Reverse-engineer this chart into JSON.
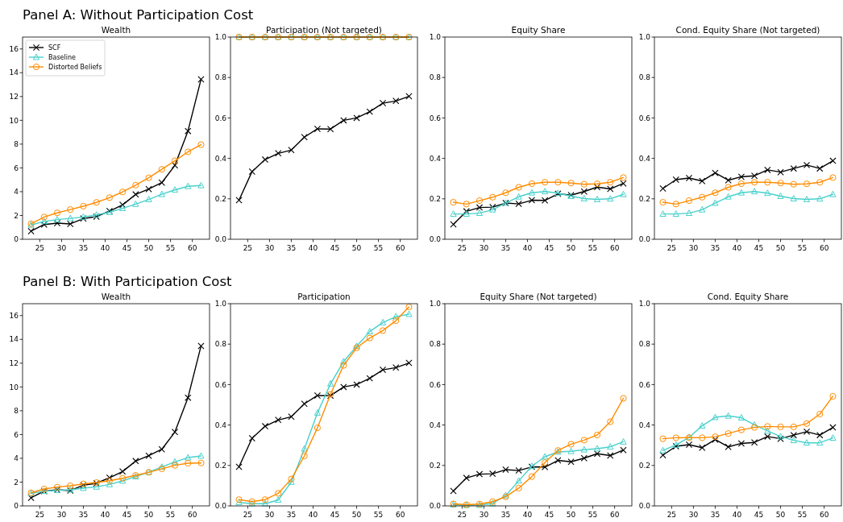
{
  "chart_data": [
    {
      "type": "line",
      "title": "Wealth",
      "annotations": [
        "Panel A: Without Participation Cost"
      ],
      "legend": "top left",
      "x": [
        23,
        26,
        29,
        32,
        35,
        38,
        41,
        44,
        47,
        50,
        53,
        56,
        59,
        62
      ],
      "xlim": [
        21.05,
        63.95
      ],
      "xticks": [
        25,
        30,
        35,
        40,
        45,
        50,
        55,
        60
      ],
      "ylim": [
        0,
        17
      ],
      "yticks": [
        0,
        2,
        4,
        6,
        8,
        10,
        12,
        14,
        16
      ],
      "series": [
        {
          "name": "SCF",
          "color": "#000000",
          "marker": "cross",
          "values": [
            0.68,
            1.24,
            1.35,
            1.29,
            1.74,
            1.9,
            2.37,
            2.89,
            3.77,
            4.22,
            4.76,
            6.21,
            9.1,
            13.45
          ]
        },
        {
          "name": "Baseline",
          "color": "#48d1cc",
          "marker": "triangle",
          "values": [
            1.2,
            1.5,
            1.65,
            1.75,
            1.87,
            2.05,
            2.27,
            2.6,
            2.95,
            3.35,
            3.78,
            4.15,
            4.45,
            4.52
          ]
        },
        {
          "name": "Distorted Beliefs",
          "color": "#ff8c00",
          "marker": "circle",
          "values": [
            1.3,
            1.87,
            2.22,
            2.5,
            2.78,
            3.1,
            3.5,
            3.98,
            4.55,
            5.17,
            5.88,
            6.6,
            7.35,
            7.95
          ]
        }
      ]
    },
    {
      "type": "line",
      "title": "Participation (Not targeted)",
      "x": [
        23,
        26,
        29,
        32,
        35,
        38,
        41,
        44,
        47,
        50,
        53,
        56,
        59,
        62
      ],
      "xlim": [
        21.05,
        63.95
      ],
      "xticks": [
        25,
        30,
        35,
        40,
        45,
        50,
        55,
        60
      ],
      "ylim": [
        0,
        1
      ],
      "yticks": [
        {
          "value": 0,
          "label": "0.0"
        },
        {
          "value": 0.2,
          "label": "0.2"
        },
        {
          "value": 0.4,
          "label": "0.4"
        },
        {
          "value": 0.6,
          "label": "0.6"
        },
        {
          "value": 0.8,
          "label": "0.8"
        },
        {
          "value": 1,
          "label": "1.0"
        }
      ],
      "series": [
        {
          "color": "#000000",
          "marker": "cross",
          "values": [
            0.193,
            0.335,
            0.394,
            0.425,
            0.441,
            0.505,
            0.546,
            0.545,
            0.588,
            0.6,
            0.631,
            0.673,
            0.684,
            0.707
          ]
        },
        {
          "color": "#48d1cc",
          "marker": "triangle",
          "values": [
            1,
            1,
            1,
            1,
            1,
            1,
            1,
            1,
            1,
            1,
            1,
            1,
            1,
            1
          ]
        },
        {
          "color": "#ff8c00",
          "marker": "circle",
          "values": [
            1,
            1,
            1,
            1,
            1,
            1,
            1,
            1,
            1,
            1,
            1,
            1,
            1,
            1
          ]
        }
      ]
    },
    {
      "type": "line",
      "title": "Equity Share",
      "x": [
        23,
        26,
        29,
        32,
        35,
        38,
        41,
        44,
        47,
        50,
        53,
        56,
        59,
        62
      ],
      "xlim": [
        21.05,
        63.95
      ],
      "xticks": [
        25,
        30,
        35,
        40,
        45,
        50,
        55,
        60
      ],
      "ylim": [
        0,
        1
      ],
      "yticks": [
        {
          "value": 0,
          "label": "0.0"
        },
        {
          "value": 0.2,
          "label": "0.2"
        },
        {
          "value": 0.4,
          "label": "0.4"
        },
        {
          "value": 0.6,
          "label": "0.6"
        },
        {
          "value": 0.8,
          "label": "0.8"
        },
        {
          "value": 1,
          "label": "1.0"
        }
      ],
      "series": [
        {
          "color": "#000000",
          "marker": "cross",
          "values": [
            0.074,
            0.138,
            0.157,
            0.159,
            0.179,
            0.175,
            0.193,
            0.192,
            0.225,
            0.218,
            0.236,
            0.258,
            0.249,
            0.276
          ]
        },
        {
          "color": "#48d1cc",
          "marker": "triangle",
          "values": [
            0.125,
            0.125,
            0.129,
            0.146,
            0.179,
            0.21,
            0.23,
            0.236,
            0.228,
            0.213,
            0.201,
            0.197,
            0.2,
            0.222
          ]
        },
        {
          "color": "#ff8c00",
          "marker": "circle",
          "values": [
            0.183,
            0.174,
            0.191,
            0.208,
            0.23,
            0.257,
            0.275,
            0.282,
            0.282,
            0.278,
            0.272,
            0.274,
            0.282,
            0.305
          ]
        }
      ]
    },
    {
      "type": "line",
      "title": "Cond. Equity Share (Not targeted)",
      "x": [
        23,
        26,
        29,
        32,
        35,
        38,
        41,
        44,
        47,
        50,
        53,
        56,
        59,
        62
      ],
      "xlim": [
        21.05,
        63.95
      ],
      "xticks": [
        25,
        30,
        35,
        40,
        45,
        50,
        55,
        60
      ],
      "ylim": [
        0,
        1
      ],
      "yticks": [
        {
          "value": 0,
          "label": "0.0"
        },
        {
          "value": 0.2,
          "label": "0.2"
        },
        {
          "value": 0.4,
          "label": "0.4"
        },
        {
          "value": 0.6,
          "label": "0.6"
        },
        {
          "value": 0.8,
          "label": "0.8"
        },
        {
          "value": 1,
          "label": "1.0"
        }
      ],
      "series": [
        {
          "color": "#000000",
          "marker": "cross",
          "values": [
            0.251,
            0.295,
            0.303,
            0.288,
            0.328,
            0.292,
            0.309,
            0.314,
            0.343,
            0.332,
            0.35,
            0.367,
            0.35,
            0.388
          ]
        },
        {
          "color": "#48d1cc",
          "marker": "triangle",
          "values": [
            0.125,
            0.125,
            0.129,
            0.146,
            0.179,
            0.21,
            0.23,
            0.236,
            0.228,
            0.213,
            0.201,
            0.197,
            0.2,
            0.222
          ]
        },
        {
          "color": "#ff8c00",
          "marker": "circle",
          "values": [
            0.183,
            0.174,
            0.191,
            0.208,
            0.23,
            0.257,
            0.275,
            0.282,
            0.282,
            0.278,
            0.272,
            0.274,
            0.282,
            0.305
          ]
        }
      ]
    },
    {
      "type": "line",
      "title": "Wealth",
      "annotations": [
        "Panel B: With Participation Cost"
      ],
      "x": [
        23,
        26,
        29,
        32,
        35,
        38,
        41,
        44,
        47,
        50,
        53,
        56,
        59,
        62
      ],
      "xlim": [
        21.05,
        63.95
      ],
      "xticks": [
        25,
        30,
        35,
        40,
        45,
        50,
        55,
        60
      ],
      "ylim": [
        0,
        17
      ],
      "yticks": [
        0,
        2,
        4,
        6,
        8,
        10,
        12,
        14,
        16
      ],
      "series": [
        {
          "color": "#000000",
          "marker": "cross",
          "values": [
            0.68,
            1.24,
            1.35,
            1.29,
            1.74,
            1.9,
            2.37,
            2.89,
            3.77,
            4.22,
            4.76,
            6.21,
            9.1,
            13.45
          ]
        },
        {
          "color": "#48d1cc",
          "marker": "triangle",
          "values": [
            1.04,
            1.24,
            1.31,
            1.35,
            1.49,
            1.6,
            1.8,
            2.1,
            2.46,
            2.84,
            3.27,
            3.7,
            4.06,
            4.2
          ]
        },
        {
          "color": "#ff8c00",
          "marker": "circle",
          "values": [
            1.1,
            1.42,
            1.58,
            1.69,
            1.85,
            1.96,
            2.12,
            2.32,
            2.57,
            2.82,
            3.12,
            3.41,
            3.59,
            3.61
          ]
        }
      ]
    },
    {
      "type": "line",
      "title": "Participation",
      "x": [
        23,
        26,
        29,
        32,
        35,
        38,
        41,
        44,
        47,
        50,
        53,
        56,
        59,
        62
      ],
      "xlim": [
        21.05,
        63.95
      ],
      "xticks": [
        25,
        30,
        35,
        40,
        45,
        50,
        55,
        60
      ],
      "ylim": [
        0,
        1
      ],
      "yticks": [
        {
          "value": 0,
          "label": "0.0"
        },
        {
          "value": 0.2,
          "label": "0.2"
        },
        {
          "value": 0.4,
          "label": "0.4"
        },
        {
          "value": 0.6,
          "label": "0.6"
        },
        {
          "value": 0.8,
          "label": "0.8"
        },
        {
          "value": 1,
          "label": "1.0"
        }
      ],
      "series": [
        {
          "color": "#000000",
          "marker": "cross",
          "values": [
            0.193,
            0.335,
            0.394,
            0.425,
            0.441,
            0.505,
            0.546,
            0.545,
            0.588,
            0.6,
            0.631,
            0.673,
            0.684,
            0.707
          ]
        },
        {
          "color": "#48d1cc",
          "marker": "triangle",
          "values": [
            0.017,
            0.011,
            0.011,
            0.029,
            0.118,
            0.282,
            0.46,
            0.604,
            0.714,
            0.79,
            0.862,
            0.907,
            0.936,
            0.948
          ]
        },
        {
          "color": "#ff8c00",
          "marker": "circle",
          "values": [
            0.031,
            0.021,
            0.031,
            0.062,
            0.133,
            0.247,
            0.386,
            0.552,
            0.695,
            0.782,
            0.83,
            0.867,
            0.916,
            0.984
          ]
        }
      ]
    },
    {
      "type": "line",
      "title": "Equity Share (Not targeted)",
      "x": [
        23,
        26,
        29,
        32,
        35,
        38,
        41,
        44,
        47,
        50,
        53,
        56,
        59,
        62
      ],
      "xlim": [
        21.05,
        63.95
      ],
      "xticks": [
        25,
        30,
        35,
        40,
        45,
        50,
        55,
        60
      ],
      "ylim": [
        0,
        1
      ],
      "yticks": [
        {
          "value": 0,
          "label": "0.0"
        },
        {
          "value": 0.2,
          "label": "0.2"
        },
        {
          "value": 0.4,
          "label": "0.4"
        },
        {
          "value": 0.6,
          "label": "0.6"
        },
        {
          "value": 0.8,
          "label": "0.8"
        },
        {
          "value": 1,
          "label": "1.0"
        }
      ],
      "series": [
        {
          "color": "#000000",
          "marker": "cross",
          "values": [
            0.074,
            0.138,
            0.157,
            0.159,
            0.179,
            0.175,
            0.193,
            0.192,
            0.225,
            0.218,
            0.236,
            0.258,
            0.249,
            0.276
          ]
        },
        {
          "color": "#48d1cc",
          "marker": "triangle",
          "values": [
            0.006,
            0.003,
            0.004,
            0.012,
            0.051,
            0.124,
            0.196,
            0.243,
            0.267,
            0.27,
            0.278,
            0.283,
            0.292,
            0.317
          ]
        },
        {
          "color": "#ff8c00",
          "marker": "circle",
          "values": [
            0.01,
            0.006,
            0.009,
            0.021,
            0.045,
            0.088,
            0.145,
            0.214,
            0.274,
            0.305,
            0.325,
            0.351,
            0.416,
            0.532
          ]
        }
      ]
    },
    {
      "type": "line",
      "title": "Cond. Equity Share",
      "x": [
        23,
        26,
        29,
        32,
        35,
        38,
        41,
        44,
        47,
        50,
        53,
        56,
        59,
        62
      ],
      "xlim": [
        21.05,
        63.95
      ],
      "xticks": [
        25,
        30,
        35,
        40,
        45,
        50,
        55,
        60
      ],
      "ylim": [
        0,
        1
      ],
      "yticks": [
        {
          "value": 0,
          "label": "0.0"
        },
        {
          "value": 0.2,
          "label": "0.2"
        },
        {
          "value": 0.4,
          "label": "0.4"
        },
        {
          "value": 0.6,
          "label": "0.6"
        },
        {
          "value": 0.8,
          "label": "0.8"
        },
        {
          "value": 1,
          "label": "1.0"
        }
      ],
      "series": [
        {
          "color": "#000000",
          "marker": "cross",
          "values": [
            0.251,
            0.295,
            0.303,
            0.288,
            0.328,
            0.292,
            0.309,
            0.314,
            0.343,
            0.332,
            0.35,
            0.367,
            0.35,
            0.388
          ]
        },
        {
          "color": "#48d1cc",
          "marker": "triangle",
          "values": [
            0.274,
            0.301,
            0.339,
            0.396,
            0.438,
            0.445,
            0.436,
            0.401,
            0.371,
            0.343,
            0.324,
            0.312,
            0.312,
            0.336
          ]
        },
        {
          "color": "#ff8c00",
          "marker": "circle",
          "values": [
            0.332,
            0.337,
            0.338,
            0.337,
            0.342,
            0.358,
            0.376,
            0.388,
            0.393,
            0.391,
            0.391,
            0.407,
            0.454,
            0.542
          ]
        }
      ]
    }
  ]
}
